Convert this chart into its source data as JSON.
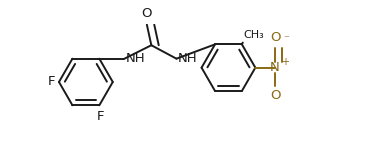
{
  "bg_color": "#ffffff",
  "line_color": "#1a1a1a",
  "nitro_color": "#8B6914",
  "bond_lw": 1.4,
  "dbo": 0.055,
  "fs": 9.5,
  "figsize": [
    3.78,
    1.55
  ],
  "dpi": 100,
  "xlim": [
    0.0,
    4.2
  ],
  "ylim": [
    -0.05,
    1.15
  ]
}
